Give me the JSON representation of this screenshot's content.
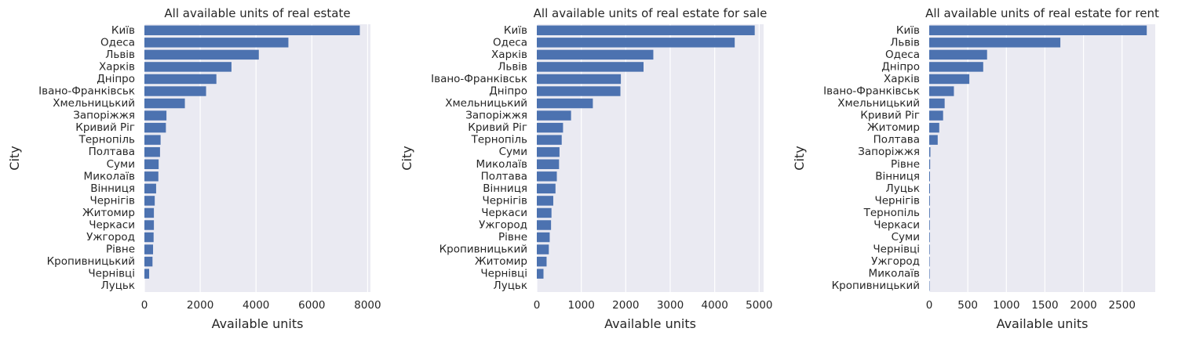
{
  "chart_data": [
    {
      "type": "bar",
      "orientation": "horizontal",
      "title": "All available units of real estate",
      "xlabel": "Available units",
      "ylabel": "City",
      "xlim": [
        0,
        8100
      ],
      "xticks": [
        0,
        2000,
        4000,
        6000,
        8000
      ],
      "categories": [
        "Київ",
        "Одеса",
        "Львів",
        "Харків",
        "Дніпро",
        "Івано-Франківськ",
        "Хмельницький",
        "Запоріжжя",
        "Кривий Ріг",
        "Тернопіль",
        "Полтава",
        "Суми",
        "Миколаїв",
        "Вінниця",
        "Чернігів",
        "Житомир",
        "Черкаси",
        "Ужгород",
        "Рівне",
        "Кропивницький",
        "Чернівці",
        "Луцьк"
      ],
      "values": [
        7720,
        5160,
        4100,
        3120,
        2580,
        2210,
        1450,
        790,
        770,
        580,
        560,
        510,
        500,
        420,
        370,
        340,
        340,
        330,
        310,
        290,
        170,
        0
      ],
      "color": "#4c72b0",
      "grid": true
    },
    {
      "type": "bar",
      "orientation": "horizontal",
      "title": "All available units of real estate for sale",
      "xlabel": "Available units",
      "ylabel": "City",
      "xlim": [
        0,
        5100
      ],
      "xticks": [
        0,
        1000,
        2000,
        3000,
        4000,
        5000
      ],
      "categories": [
        "Київ",
        "Одеса",
        "Харків",
        "Львів",
        "Івано-Франківськ",
        "Дніпро",
        "Хмельницький",
        "Запоріжжя",
        "Кривий Ріг",
        "Тернопіль",
        "Суми",
        "Миколаїв",
        "Полтава",
        "Вінниця",
        "Чернігів",
        "Черкаси",
        "Ужгород",
        "Рівне",
        "Кропивницький",
        "Житомир",
        "Чернівці",
        "Луцьк"
      ],
      "values": [
        4900,
        4450,
        2620,
        2400,
        1890,
        1880,
        1260,
        770,
        590,
        560,
        510,
        500,
        450,
        420,
        370,
        330,
        320,
        290,
        270,
        220,
        150,
        0
      ],
      "color": "#4c72b0",
      "grid": true
    },
    {
      "type": "bar",
      "orientation": "horizontal",
      "title": "All available units of real estate for rent",
      "xlabel": "Available units",
      "ylabel": "City",
      "xlim": [
        0,
        2930
      ],
      "xticks": [
        0,
        500,
        1000,
        1500,
        2000,
        2500
      ],
      "categories": [
        "Київ",
        "Львів",
        "Одеса",
        "Дніпро",
        "Харків",
        "Івано-Франківськ",
        "Хмельницький",
        "Кривий Ріг",
        "Житомир",
        "Полтава",
        "Запоріжжя",
        "Рівне",
        "Вінниця",
        "Луцьк",
        "Чернігів",
        "Тернопіль",
        "Черкаси",
        "Суми",
        "Чернівці",
        "Ужгород",
        "Миколаїв",
        "Кропивницький"
      ],
      "values": [
        2820,
        1700,
        750,
        700,
        520,
        320,
        200,
        180,
        130,
        110,
        15,
        12,
        10,
        10,
        9,
        9,
        8,
        8,
        7,
        6,
        6,
        5
      ],
      "color": "#4c72b0",
      "grid": true
    }
  ]
}
